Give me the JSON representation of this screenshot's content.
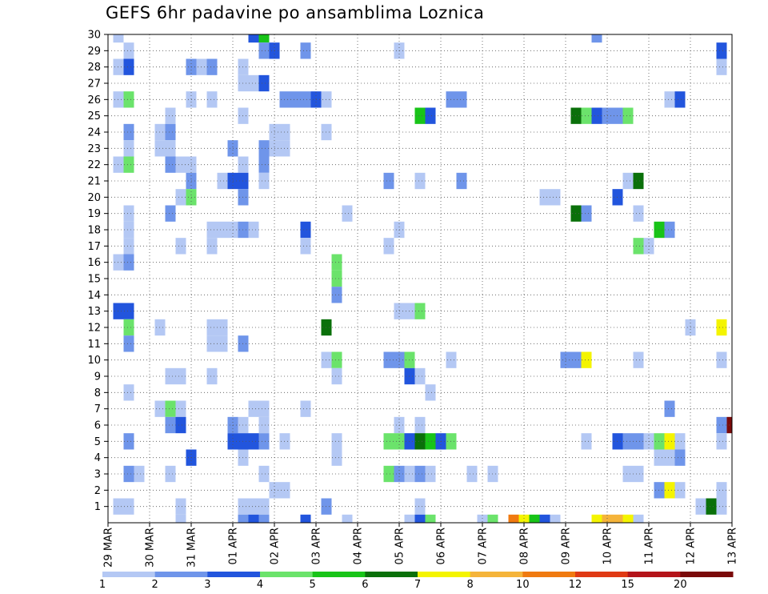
{
  "title": "GEFS 6hr padavine po ansamblima Loznica",
  "chart_data": {
    "type": "heatmap",
    "title": "GEFS 6hr padavine po ansamblima Loznica",
    "xlabel": "",
    "ylabel": "",
    "x_ticks": [
      "29 MAR",
      "30 MAR",
      "31 MAR",
      "01 APR",
      "02 APR",
      "03 APR",
      "04 APR",
      "05 APR",
      "06 APR",
      "07 APR",
      "08 APR",
      "09 APR",
      "10 APR",
      "11 APR",
      "12 APR",
      "13 APR"
    ],
    "x_step_hours": 6,
    "x_steps_per_day": 4,
    "x_steps_total": 60,
    "y_ticks": [
      1,
      2,
      3,
      4,
      5,
      6,
      7,
      8,
      9,
      10,
      11,
      12,
      13,
      14,
      15,
      16,
      17,
      18,
      19,
      20,
      21,
      22,
      23,
      24,
      25,
      26,
      27,
      28,
      29,
      30
    ],
    "ylim": [
      0,
      30
    ],
    "grid": true,
    "colorbar": {
      "levels": [
        1,
        2,
        3,
        4,
        5,
        6,
        7,
        8,
        10,
        12,
        15,
        20
      ],
      "labels": [
        "1",
        "2",
        "3",
        "4",
        "5",
        "6",
        "7",
        "8",
        "10",
        "12",
        "15",
        "20"
      ],
      "colors": [
        "#b4c8f4",
        "#6f95ea",
        "#2255dd",
        "#6be36b",
        "#18c418",
        "#0a700a",
        "#f4f400",
        "#f5b43a",
        "#f07a10",
        "#e03a14",
        "#b4141a",
        "#7a0a0a"
      ]
    },
    "cells": [
      [
        1,
        30,
        1
      ],
      [
        14,
        30,
        3
      ],
      [
        15,
        30,
        5
      ],
      [
        47,
        30,
        2
      ],
      [
        2,
        29,
        1
      ],
      [
        15,
        29,
        2
      ],
      [
        16,
        29,
        3
      ],
      [
        19,
        29,
        2
      ],
      [
        28,
        29,
        1
      ],
      [
        59,
        29,
        3
      ],
      [
        1,
        28,
        1
      ],
      [
        2,
        28,
        3
      ],
      [
        8,
        28,
        2
      ],
      [
        9,
        28,
        1
      ],
      [
        10,
        28,
        2
      ],
      [
        13,
        28,
        1
      ],
      [
        59,
        28,
        1
      ],
      [
        13,
        27,
        1
      ],
      [
        14,
        27,
        1
      ],
      [
        15,
        27,
        3
      ],
      [
        1,
        26,
        1
      ],
      [
        2,
        26,
        4
      ],
      [
        8,
        26,
        1
      ],
      [
        10,
        26,
        1
      ],
      [
        17,
        26,
        2
      ],
      [
        18,
        26,
        2
      ],
      [
        19,
        26,
        2
      ],
      [
        20,
        26,
        3
      ],
      [
        21,
        26,
        1
      ],
      [
        33,
        26,
        2
      ],
      [
        34,
        26,
        2
      ],
      [
        54,
        26,
        1
      ],
      [
        55,
        26,
        3
      ],
      [
        6,
        25,
        1
      ],
      [
        13,
        25,
        1
      ],
      [
        30,
        25,
        5
      ],
      [
        31,
        25,
        3
      ],
      [
        45,
        25,
        6
      ],
      [
        46,
        25,
        4
      ],
      [
        47,
        25,
        3
      ],
      [
        48,
        25,
        2
      ],
      [
        49,
        25,
        2
      ],
      [
        50,
        25,
        4
      ],
      [
        2,
        24,
        2
      ],
      [
        5,
        24,
        1
      ],
      [
        6,
        24,
        2
      ],
      [
        16,
        24,
        1
      ],
      [
        17,
        24,
        1
      ],
      [
        21,
        24,
        1
      ],
      [
        2,
        23,
        1
      ],
      [
        5,
        23,
        1
      ],
      [
        6,
        23,
        1
      ],
      [
        12,
        23,
        2
      ],
      [
        15,
        23,
        2
      ],
      [
        16,
        23,
        1
      ],
      [
        17,
        23,
        1
      ],
      [
        1,
        22,
        1
      ],
      [
        2,
        22,
        4
      ],
      [
        6,
        22,
        2
      ],
      [
        7,
        22,
        1
      ],
      [
        8,
        22,
        1
      ],
      [
        13,
        22,
        1
      ],
      [
        15,
        22,
        2
      ],
      [
        8,
        21,
        2
      ],
      [
        11,
        21,
        1
      ],
      [
        12,
        21,
        3
      ],
      [
        13,
        21,
        3
      ],
      [
        15,
        21,
        1
      ],
      [
        27,
        21,
        2
      ],
      [
        30,
        21,
        1
      ],
      [
        34,
        21,
        2
      ],
      [
        50,
        21,
        1
      ],
      [
        51,
        21,
        6
      ],
      [
        7,
        20,
        1
      ],
      [
        8,
        20,
        4
      ],
      [
        13,
        20,
        2
      ],
      [
        42,
        20,
        1
      ],
      [
        43,
        20,
        1
      ],
      [
        49,
        20,
        3
      ],
      [
        2,
        19,
        1
      ],
      [
        6,
        19,
        2
      ],
      [
        23,
        19,
        1
      ],
      [
        45,
        19,
        6
      ],
      [
        46,
        19,
        2
      ],
      [
        51,
        19,
        1
      ],
      [
        2,
        18,
        1
      ],
      [
        10,
        18,
        1
      ],
      [
        11,
        18,
        1
      ],
      [
        12,
        18,
        1
      ],
      [
        13,
        18,
        2
      ],
      [
        14,
        18,
        1
      ],
      [
        19,
        18,
        3
      ],
      [
        28,
        18,
        1
      ],
      [
        53,
        18,
        5
      ],
      [
        54,
        18,
        2
      ],
      [
        2,
        17,
        1
      ],
      [
        7,
        17,
        1
      ],
      [
        10,
        17,
        1
      ],
      [
        19,
        17,
        1
      ],
      [
        27,
        17,
        1
      ],
      [
        51,
        17,
        4
      ],
      [
        52,
        17,
        1
      ],
      [
        1,
        16,
        1
      ],
      [
        2,
        16,
        2
      ],
      [
        22,
        16,
        4
      ],
      [
        22,
        15,
        4
      ],
      [
        22,
        14,
        2
      ],
      [
        1,
        13,
        3
      ],
      [
        2,
        13,
        3
      ],
      [
        28,
        13,
        1
      ],
      [
        29,
        13,
        1
      ],
      [
        30,
        13,
        4
      ],
      [
        2,
        12,
        4
      ],
      [
        5,
        12,
        1
      ],
      [
        10,
        12,
        1
      ],
      [
        11,
        12,
        1
      ],
      [
        21,
        12,
        6
      ],
      [
        56,
        12,
        1
      ],
      [
        59,
        12,
        7
      ],
      [
        2,
        11,
        2
      ],
      [
        10,
        11,
        1
      ],
      [
        11,
        11,
        1
      ],
      [
        13,
        11,
        2
      ],
      [
        21,
        10,
        1
      ],
      [
        22,
        10,
        4
      ],
      [
        27,
        10,
        2
      ],
      [
        28,
        10,
        2
      ],
      [
        29,
        10,
        4
      ],
      [
        33,
        10,
        1
      ],
      [
        44,
        10,
        2
      ],
      [
        45,
        10,
        2
      ],
      [
        46,
        10,
        7
      ],
      [
        51,
        10,
        1
      ],
      [
        59,
        10,
        1
      ],
      [
        6,
        9,
        1
      ],
      [
        7,
        9,
        1
      ],
      [
        10,
        9,
        1
      ],
      [
        22,
        9,
        1
      ],
      [
        29,
        9,
        3
      ],
      [
        30,
        9,
        1
      ],
      [
        2,
        8,
        1
      ],
      [
        31,
        8,
        1
      ],
      [
        5,
        7,
        1
      ],
      [
        6,
        7,
        4
      ],
      [
        7,
        7,
        1
      ],
      [
        14,
        7,
        1
      ],
      [
        15,
        7,
        1
      ],
      [
        19,
        7,
        1
      ],
      [
        54,
        7,
        2
      ],
      [
        6,
        6,
        2
      ],
      [
        7,
        6,
        3
      ],
      [
        12,
        6,
        2
      ],
      [
        13,
        6,
        1
      ],
      [
        15,
        6,
        1
      ],
      [
        28,
        6,
        1
      ],
      [
        30,
        6,
        1
      ],
      [
        59,
        6,
        2
      ],
      [
        60,
        6,
        12
      ],
      [
        2,
        5,
        2
      ],
      [
        12,
        5,
        3
      ],
      [
        13,
        5,
        3
      ],
      [
        14,
        5,
        3
      ],
      [
        15,
        5,
        2
      ],
      [
        17,
        5,
        1
      ],
      [
        22,
        5,
        1
      ],
      [
        27,
        5,
        4
      ],
      [
        28,
        5,
        4
      ],
      [
        29,
        5,
        3
      ],
      [
        30,
        5,
        6
      ],
      [
        31,
        5,
        5
      ],
      [
        32,
        5,
        3
      ],
      [
        33,
        5,
        4
      ],
      [
        46,
        5,
        1
      ],
      [
        49,
        5,
        3
      ],
      [
        50,
        5,
        2
      ],
      [
        51,
        5,
        2
      ],
      [
        52,
        5,
        1
      ],
      [
        53,
        5,
        4
      ],
      [
        54,
        5,
        7
      ],
      [
        55,
        5,
        1
      ],
      [
        59,
        5,
        1
      ],
      [
        8,
        4,
        3
      ],
      [
        13,
        4,
        1
      ],
      [
        22,
        4,
        1
      ],
      [
        53,
        4,
        1
      ],
      [
        54,
        4,
        1
      ],
      [
        55,
        4,
        2
      ],
      [
        2,
        3,
        2
      ],
      [
        3,
        3,
        1
      ],
      [
        6,
        3,
        1
      ],
      [
        15,
        3,
        1
      ],
      [
        27,
        3,
        4
      ],
      [
        28,
        3,
        2
      ],
      [
        29,
        3,
        1
      ],
      [
        30,
        3,
        2
      ],
      [
        31,
        3,
        1
      ],
      [
        35,
        3,
        1
      ],
      [
        37,
        3,
        1
      ],
      [
        50,
        3,
        1
      ],
      [
        51,
        3,
        1
      ],
      [
        16,
        2,
        1
      ],
      [
        17,
        2,
        1
      ],
      [
        53,
        2,
        2
      ],
      [
        54,
        2,
        7
      ],
      [
        55,
        2,
        1
      ],
      [
        59,
        2,
        1
      ],
      [
        1,
        1,
        1
      ],
      [
        2,
        1,
        1
      ],
      [
        7,
        1,
        1
      ],
      [
        13,
        1,
        1
      ],
      [
        14,
        1,
        1
      ],
      [
        15,
        1,
        1
      ],
      [
        21,
        1,
        2
      ],
      [
        30,
        1,
        1
      ],
      [
        57,
        1,
        1
      ],
      [
        58,
        1,
        6
      ],
      [
        59,
        1,
        1
      ],
      [
        7,
        0,
        1
      ],
      [
        13,
        0,
        2
      ],
      [
        14,
        0,
        3
      ],
      [
        15,
        0,
        2
      ],
      [
        19,
        0,
        3
      ],
      [
        23,
        0,
        1
      ],
      [
        29,
        0,
        1
      ],
      [
        30,
        0,
        3
      ],
      [
        31,
        0,
        4
      ],
      [
        36,
        0,
        1
      ],
      [
        37,
        0,
        4
      ],
      [
        39,
        0,
        9
      ],
      [
        40,
        0,
        7
      ],
      [
        41,
        0,
        5
      ],
      [
        42,
        0,
        3
      ],
      [
        43,
        0,
        1
      ],
      [
        47,
        0,
        7
      ],
      [
        48,
        0,
        8
      ],
      [
        49,
        0,
        8
      ],
      [
        50,
        0,
        7
      ],
      [
        51,
        0,
        1
      ]
    ]
  }
}
